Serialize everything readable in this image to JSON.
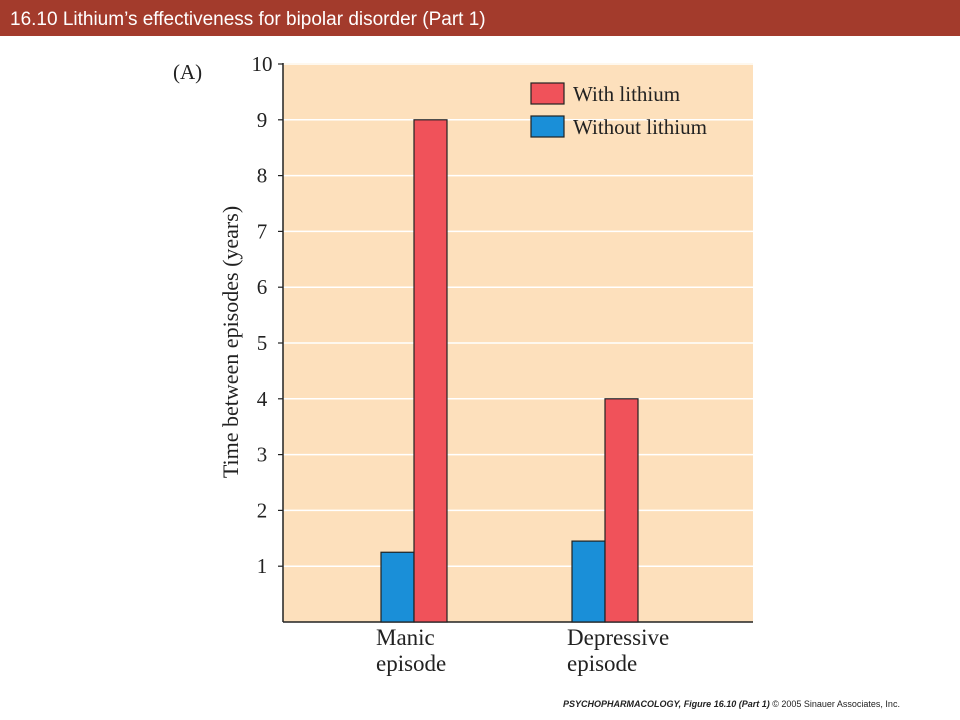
{
  "slide": {
    "title": "16.10  Lithium’s effectiveness for bipolar disorder (Part 1)",
    "footer_book": "PSYCHOPHARMACOLOGY,",
    "footer_figure": " Figure 16.10 (Part 1)",
    "footer_copyright": " © 2005 Sinauer Associates, Inc.",
    "title_bar_color": "#a33b2c"
  },
  "chart_data": {
    "type": "bar",
    "panel_label": "(A)",
    "categories": [
      [
        "Manic",
        "episode"
      ],
      [
        "Depressive",
        "episode"
      ]
    ],
    "series": [
      {
        "name": "Without lithium",
        "values": [
          1.25,
          1.45
        ],
        "color": "#1a8fd8"
      },
      {
        "name": "With lithium",
        "values": [
          9,
          4
        ],
        "color": "#f0525a"
      }
    ],
    "ylabel": "Time between episodes (years)",
    "xlabel": "",
    "ylim": [
      0,
      10
    ],
    "yticks": [
      1,
      2,
      3,
      4,
      5,
      6,
      7,
      8,
      9,
      10
    ],
    "legend": [
      {
        "label": "With lithium",
        "color": "#f0525a"
      },
      {
        "label": "Without lithium",
        "color": "#1a8fd8"
      }
    ],
    "legend_position": "top-right",
    "grid": true,
    "background_color": "#fde0bc",
    "grid_color": "#ffffff"
  }
}
